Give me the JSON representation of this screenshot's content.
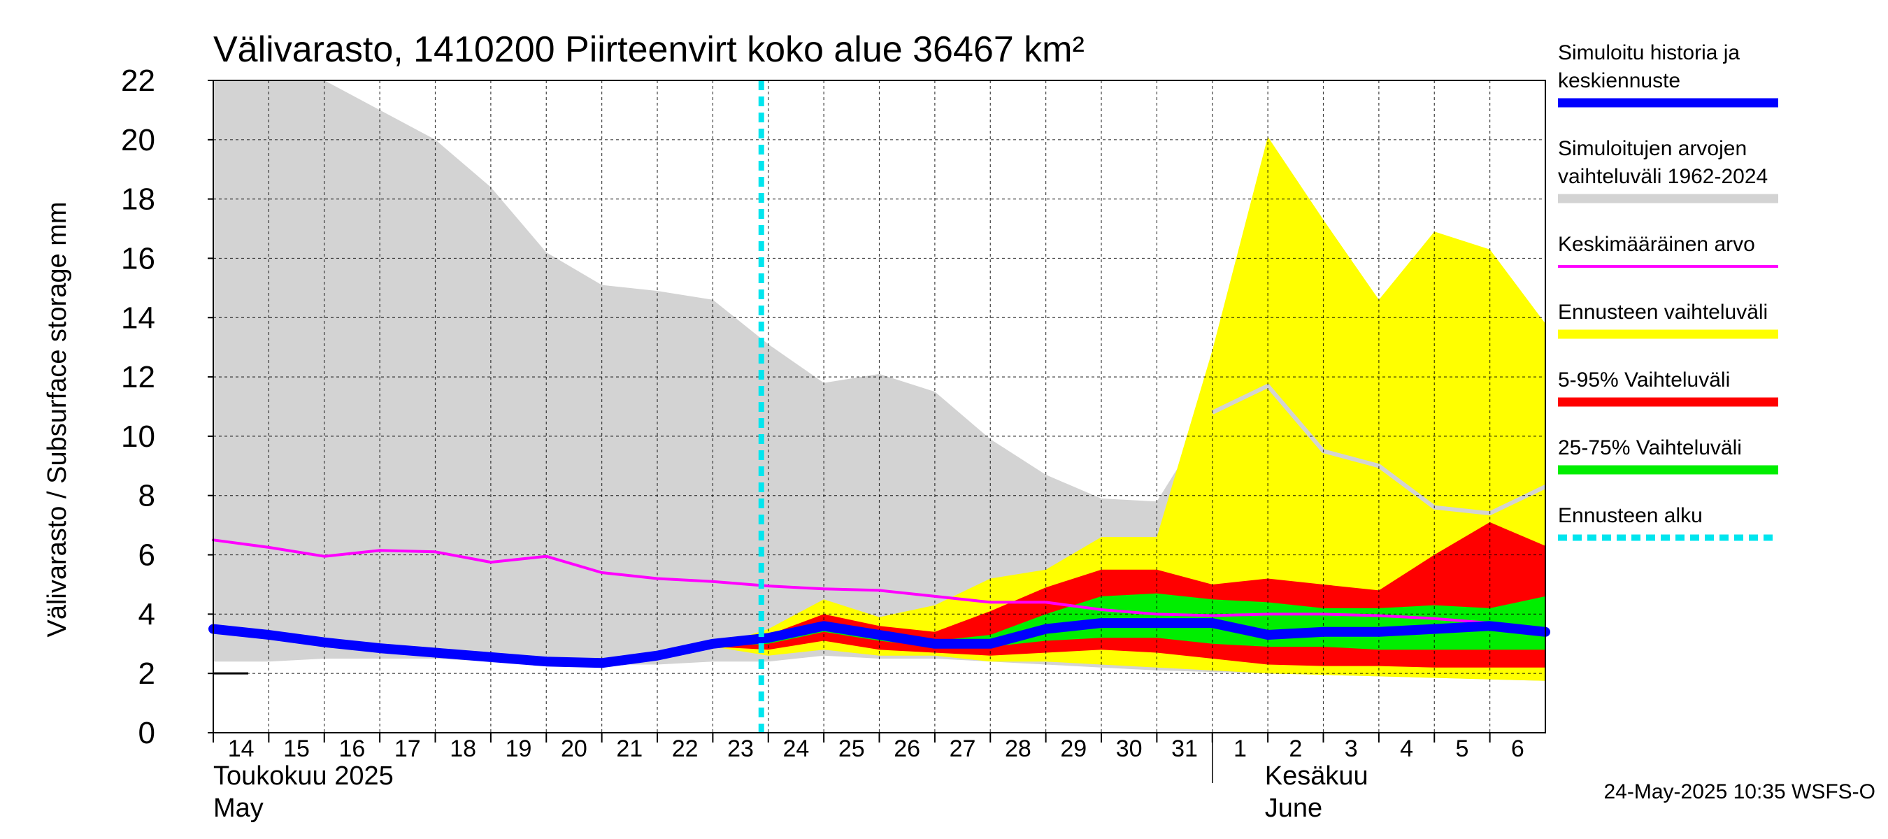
{
  "chart_data": {
    "type": "area",
    "title": "Välivarasto, 1410200 Piirteenvirt koko alue 36467 km²",
    "ylabel": "Välivarasto / Subsurface storage  mm",
    "xlabel": "",
    "ylim": [
      0,
      22
    ],
    "yticks": [
      0,
      2,
      4,
      6,
      8,
      10,
      12,
      14,
      16,
      18,
      20,
      22
    ],
    "grid": true,
    "legend_position": "right",
    "x": [
      "2025-05-14",
      "2025-05-15",
      "2025-05-16",
      "2025-05-17",
      "2025-05-18",
      "2025-05-19",
      "2025-05-20",
      "2025-05-21",
      "2025-05-22",
      "2025-05-23",
      "2025-05-24",
      "2025-05-25",
      "2025-05-26",
      "2025-05-27",
      "2025-05-28",
      "2025-05-29",
      "2025-05-30",
      "2025-05-31",
      "2025-06-01",
      "2025-06-02",
      "2025-06-03",
      "2025-06-04",
      "2025-06-05",
      "2025-06-06",
      "2025-06-07"
    ],
    "x_tick_labels": [
      "14",
      "15",
      "16",
      "17",
      "18",
      "19",
      "20",
      "21",
      "22",
      "23",
      "24",
      "25",
      "26",
      "27",
      "28",
      "29",
      "30",
      "31",
      "1",
      "2",
      "3",
      "4",
      "5",
      "6"
    ],
    "month_labels": [
      {
        "line1": "Toukokuu  2025",
        "line2": "May",
        "start": "2025-05-14"
      },
      {
        "line1": "Kesäkuu",
        "line2": "June",
        "start": "2025-06-01"
      }
    ],
    "forecast_start": "2025-05-24",
    "series": [
      {
        "name": "Simuloitujen arvojen vaihteluväli 1962-2024",
        "kind": "band",
        "color": "#d3d3d3",
        "x": [
          "2025-05-14",
          "2025-05-15",
          "2025-05-16",
          "2025-05-17",
          "2025-05-18",
          "2025-05-19",
          "2025-05-20",
          "2025-05-21",
          "2025-05-22",
          "2025-05-23",
          "2025-05-24",
          "2025-05-25",
          "2025-05-26",
          "2025-05-27",
          "2025-05-28",
          "2025-05-29",
          "2025-05-30",
          "2025-05-31",
          "2025-06-01",
          "2025-06-02",
          "2025-06-03",
          "2025-06-04",
          "2025-06-05",
          "2025-06-06",
          "2025-06-07"
        ],
        "lower": [
          2.4,
          2.4,
          2.5,
          2.5,
          2.5,
          2.4,
          2.3,
          2.3,
          2.3,
          2.4,
          2.4,
          2.6,
          2.5,
          2.5,
          2.4,
          2.3,
          2.2,
          2.1,
          2.05,
          2.0,
          1.95,
          1.9,
          1.85,
          1.8,
          1.75
        ],
        "upper": [
          22,
          22,
          22,
          21,
          20,
          18.4,
          16.2,
          15.1,
          14.9,
          14.6,
          13.1,
          11.8,
          12.1,
          11.5,
          9.9,
          8.7,
          7.9,
          7.8,
          10.8,
          11.7,
          9.5,
          9.0,
          7.6,
          7.4,
          8.3
        ]
      },
      {
        "name": "Ennusteen vaihteluväli",
        "kind": "band",
        "color": "#ffff00",
        "x": [
          "2025-05-23",
          "2025-05-24",
          "2025-05-25",
          "2025-05-26",
          "2025-05-27",
          "2025-05-28",
          "2025-05-29",
          "2025-05-30",
          "2025-05-31",
          "2025-06-01",
          "2025-06-02",
          "2025-06-03",
          "2025-06-04",
          "2025-06-05",
          "2025-06-06",
          "2025-06-07"
        ],
        "lower": [
          2.9,
          2.6,
          2.8,
          2.6,
          2.6,
          2.4,
          2.4,
          2.3,
          2.2,
          2.1,
          2.0,
          1.95,
          1.9,
          1.85,
          1.8,
          1.75
        ],
        "upper": [
          2.9,
          3.5,
          4.5,
          3.9,
          4.3,
          5.2,
          5.5,
          6.6,
          6.6,
          12.9,
          20.1,
          17.3,
          14.6,
          16.9,
          16.3,
          13.8
        ]
      },
      {
        "name": "5-95% Vaihteluväli",
        "kind": "band",
        "color": "#ff0000",
        "x": [
          "2025-05-23",
          "2025-05-24",
          "2025-05-25",
          "2025-05-26",
          "2025-05-27",
          "2025-05-28",
          "2025-05-29",
          "2025-05-30",
          "2025-05-31",
          "2025-06-01",
          "2025-06-02",
          "2025-06-03",
          "2025-06-04",
          "2025-06-05",
          "2025-06-06",
          "2025-06-07"
        ],
        "lower": [
          2.9,
          2.8,
          3.1,
          2.8,
          2.7,
          2.6,
          2.7,
          2.8,
          2.7,
          2.5,
          2.3,
          2.25,
          2.25,
          2.2,
          2.2,
          2.2
        ],
        "upper": [
          2.9,
          3.3,
          4.0,
          3.6,
          3.4,
          4.1,
          4.9,
          5.5,
          5.5,
          5.0,
          5.2,
          5.0,
          4.8,
          6.0,
          7.1,
          6.3
        ]
      },
      {
        "name": "25-75% Vaihteluväli",
        "kind": "band",
        "color": "#00ee00",
        "x": [
          "2025-05-23",
          "2025-05-24",
          "2025-05-25",
          "2025-05-26",
          "2025-05-27",
          "2025-05-28",
          "2025-05-29",
          "2025-05-30",
          "2025-05-31",
          "2025-06-01",
          "2025-06-02",
          "2025-06-03",
          "2025-06-04",
          "2025-06-05",
          "2025-06-06",
          "2025-06-07"
        ],
        "lower": [
          2.9,
          3.0,
          3.4,
          3.1,
          2.9,
          2.9,
          3.1,
          3.2,
          3.2,
          3.0,
          2.9,
          2.9,
          2.8,
          2.8,
          2.8,
          2.8
        ],
        "upper": [
          2.9,
          3.1,
          3.6,
          3.3,
          3.1,
          3.3,
          4.0,
          4.6,
          4.7,
          4.5,
          4.4,
          4.2,
          4.2,
          4.3,
          4.2,
          4.6
        ]
      },
      {
        "name": "Keskimääräinen arvo",
        "kind": "line",
        "color": "#ff00ff",
        "x": [
          "2025-05-14",
          "2025-05-15",
          "2025-05-16",
          "2025-05-17",
          "2025-05-18",
          "2025-05-19",
          "2025-05-20",
          "2025-05-21",
          "2025-05-22",
          "2025-05-23",
          "2025-05-24",
          "2025-05-25",
          "2025-05-26",
          "2025-05-27",
          "2025-05-28",
          "2025-05-29",
          "2025-05-30",
          "2025-05-31",
          "2025-06-01",
          "2025-06-02",
          "2025-06-03",
          "2025-06-04",
          "2025-06-05",
          "2025-06-06",
          "2025-06-07"
        ],
        "values": [
          6.5,
          6.25,
          5.95,
          6.15,
          6.1,
          5.75,
          5.95,
          5.4,
          5.2,
          5.1,
          4.95,
          4.85,
          4.8,
          4.6,
          4.4,
          4.4,
          4.15,
          4.0,
          3.95,
          4.0,
          4.0,
          3.95,
          3.85,
          3.7,
          3.5
        ]
      },
      {
        "name": "Simuloitu historia ja keskiennuste",
        "kind": "line",
        "color": "#0000ff",
        "x": [
          "2025-05-14",
          "2025-05-15",
          "2025-05-16",
          "2025-05-17",
          "2025-05-18",
          "2025-05-19",
          "2025-05-20",
          "2025-05-21",
          "2025-05-22",
          "2025-05-23",
          "2025-05-24",
          "2025-05-25",
          "2025-05-26",
          "2025-05-27",
          "2025-05-28",
          "2025-05-29",
          "2025-05-30",
          "2025-05-31",
          "2025-06-01",
          "2025-06-02",
          "2025-06-03",
          "2025-06-04",
          "2025-06-05",
          "2025-06-06",
          "2025-06-07"
        ],
        "values": [
          3.5,
          3.3,
          3.05,
          2.85,
          2.7,
          2.55,
          2.4,
          2.35,
          2.6,
          3.0,
          3.2,
          3.6,
          3.3,
          3.0,
          3.0,
          3.5,
          3.7,
          3.7,
          3.7,
          3.3,
          3.4,
          3.4,
          3.5,
          3.6,
          3.4
        ]
      }
    ],
    "legend": [
      {
        "label": "Simuloitu historia ja keskiennuste",
        "color": "#0000ff",
        "style": "thick"
      },
      {
        "label": "Simuloitujen arvojen vaihteluväli 1962-2024",
        "color": "#d3d3d3",
        "style": "thick"
      },
      {
        "label": "Keskimääräinen arvo",
        "color": "#ff00ff",
        "style": "thin"
      },
      {
        "label": "Ennusteen vaihteluväli",
        "color": "#ffff00",
        "style": "thick"
      },
      {
        "label": "5-95% Vaihteluväli",
        "color": "#ff0000",
        "style": "thick"
      },
      {
        "label": "25-75% Vaihteluväli",
        "color": "#00ee00",
        "style": "thick"
      },
      {
        "label": "Ennusteen alku",
        "color": "#00e5ee",
        "style": "dashed"
      }
    ],
    "timestamp": "24-May-2025 10:35 WSFS-O"
  }
}
